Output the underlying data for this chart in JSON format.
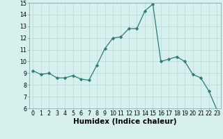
{
  "x": [
    0,
    1,
    2,
    3,
    4,
    5,
    6,
    7,
    8,
    9,
    10,
    11,
    12,
    13,
    14,
    15,
    16,
    17,
    18,
    19,
    20,
    21,
    22,
    23
  ],
  "y": [
    9.2,
    8.9,
    9.0,
    8.6,
    8.6,
    8.8,
    8.5,
    8.4,
    9.7,
    11.1,
    12.0,
    12.1,
    12.8,
    12.8,
    14.3,
    14.9,
    10.0,
    10.2,
    10.4,
    10.0,
    8.9,
    8.6,
    7.5,
    5.9
  ],
  "xlabel": "Humidex (Indice chaleur)",
  "ylim": [
    6,
    15
  ],
  "yticks": [
    6,
    7,
    8,
    9,
    10,
    11,
    12,
    13,
    14,
    15
  ],
  "xticks": [
    0,
    1,
    2,
    3,
    4,
    5,
    6,
    7,
    8,
    9,
    10,
    11,
    12,
    13,
    14,
    15,
    16,
    17,
    18,
    19,
    20,
    21,
    22,
    23
  ],
  "line_color": "#2e7d6e",
  "marker": "D",
  "marker_size": 2.2,
  "bg_color": "#d6f0ee",
  "grid_color": "#b8d8d4",
  "tick_label_fontsize": 5.8,
  "xlabel_fontsize": 7.5
}
